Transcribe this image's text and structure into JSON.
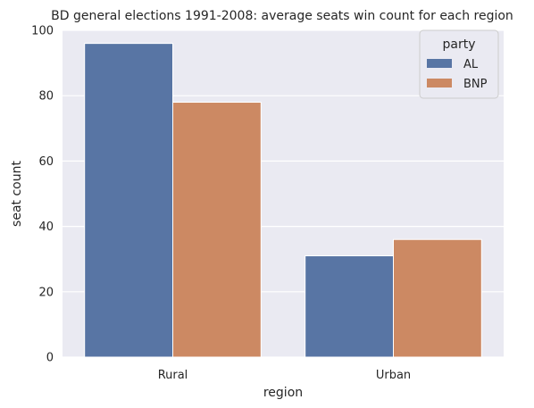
{
  "chart_data": {
    "type": "bar",
    "title": "BD general elections 1991-2008: average seats win count for each region",
    "xlabel": "region",
    "ylabel": "seat count",
    "categories": [
      "Rural",
      "Urban"
    ],
    "series": [
      {
        "name": "AL",
        "values": [
          96,
          31
        ],
        "color": "#5875a4"
      },
      {
        "name": "BNP",
        "values": [
          78,
          36
        ],
        "color": "#cc8963"
      }
    ],
    "ylim": [
      0,
      100
    ],
    "yticks": [
      0,
      20,
      40,
      60,
      80,
      100
    ],
    "legend": {
      "title": "party",
      "position": "top-right"
    },
    "grid": true,
    "background": "#eaeaf2"
  }
}
